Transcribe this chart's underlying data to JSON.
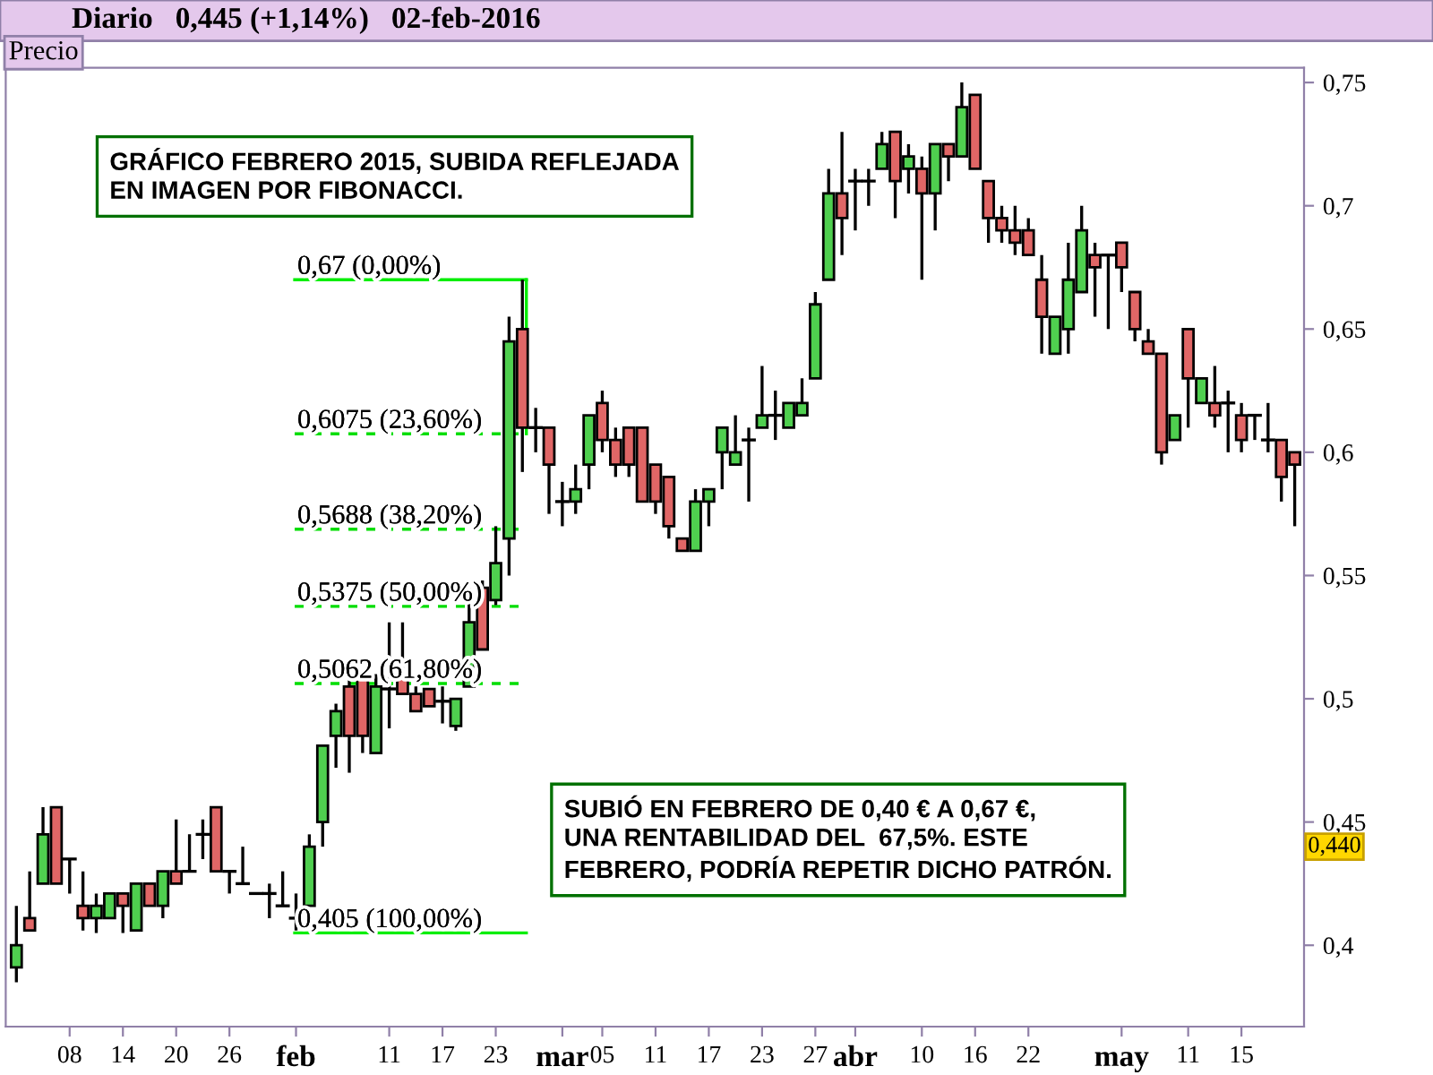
{
  "chart_data": {
    "type": "candlestick",
    "title": "Diario   0,445 (+1,14%)   02-feb-2016",
    "ylabel": "Precio",
    "categories": [
      null,
      null,
      null,
      null,
      "08",
      null,
      null,
      null,
      "14",
      null,
      null,
      null,
      "20",
      null,
      null,
      null,
      "26",
      null,
      null,
      null,
      null,
      "feb",
      null,
      null,
      null,
      null,
      null,
      null,
      "11",
      null,
      null,
      null,
      "17",
      null,
      null,
      null,
      "23",
      null,
      null,
      null,
      null,
      "mar",
      null,
      null,
      "05",
      null,
      null,
      null,
      "11",
      null,
      null,
      null,
      "17",
      null,
      null,
      null,
      "23",
      null,
      null,
      null,
      "27",
      null,
      null,
      "abr",
      null,
      null,
      null,
      null,
      "10",
      null,
      null,
      null,
      "16",
      null,
      null,
      null,
      "22",
      null,
      null,
      null,
      null,
      null,
      null,
      "may",
      null,
      null,
      null,
      null,
      "11",
      null,
      null,
      null,
      "15",
      null,
      null,
      null,
      null
    ],
    "ohlc": [
      [
        0.391,
        0.416,
        0.385,
        0.4
      ],
      [
        0.411,
        0.43,
        0.406,
        0.406
      ],
      [
        0.425,
        0.456,
        0.425,
        0.445
      ],
      [
        0.456,
        0.456,
        0.425,
        0.425
      ],
      [
        0.435,
        0.435,
        0.421,
        0.435
      ],
      [
        0.416,
        0.43,
        0.406,
        0.411
      ],
      [
        0.411,
        0.421,
        0.405,
        0.416
      ],
      [
        0.411,
        0.421,
        0.411,
        0.421
      ],
      [
        0.421,
        0.421,
        0.405,
        0.416
      ],
      [
        0.406,
        0.425,
        0.406,
        0.425
      ],
      [
        0.425,
        0.425,
        0.416,
        0.416
      ],
      [
        0.416,
        0.43,
        0.411,
        0.43
      ],
      [
        0.43,
        0.451,
        0.425,
        0.425
      ],
      [
        0.43,
        0.445,
        0.43,
        0.43
      ],
      [
        0.445,
        0.451,
        0.435,
        0.445
      ],
      [
        0.456,
        0.456,
        0.43,
        0.43
      ],
      [
        0.43,
        0.43,
        0.421,
        0.43
      ],
      [
        0.425,
        0.44,
        0.425,
        0.425
      ],
      [
        0.421,
        0.421,
        0.421,
        0.421
      ],
      [
        0.421,
        0.425,
        0.411,
        0.421
      ],
      [
        0.416,
        0.43,
        0.416,
        0.416
      ],
      [
        0.411,
        0.421,
        0.406,
        0.411
      ],
      [
        0.416,
        0.445,
        0.416,
        0.44
      ],
      [
        0.45,
        0.481,
        0.44,
        0.481
      ],
      [
        0.485,
        0.498,
        0.472,
        0.495
      ],
      [
        0.505,
        0.51,
        0.47,
        0.485
      ],
      [
        0.511,
        0.511,
        0.478,
        0.485
      ],
      [
        0.478,
        0.51,
        0.478,
        0.505
      ],
      [
        0.504,
        0.531,
        0.488,
        0.504
      ],
      [
        0.51,
        0.531,
        0.502,
        0.502
      ],
      [
        0.502,
        0.505,
        0.495,
        0.495
      ],
      [
        0.504,
        0.504,
        0.497,
        0.497
      ],
      [
        0.499,
        0.505,
        0.49,
        0.499
      ],
      [
        0.489,
        0.5,
        0.487,
        0.5
      ],
      [
        0.505,
        0.545,
        0.505,
        0.531
      ],
      [
        0.545,
        0.548,
        0.52,
        0.52
      ],
      [
        0.54,
        0.57,
        0.538,
        0.555
      ],
      [
        0.565,
        0.655,
        0.55,
        0.645
      ],
      [
        0.65,
        0.67,
        0.592,
        0.61
      ],
      [
        0.61,
        0.618,
        0.6,
        0.61
      ],
      [
        0.61,
        0.61,
        0.575,
        0.595
      ],
      [
        0.58,
        0.588,
        0.57,
        0.58
      ],
      [
        0.58,
        0.595,
        0.575,
        0.585
      ],
      [
        0.595,
        0.615,
        0.585,
        0.615
      ],
      [
        0.62,
        0.625,
        0.6,
        0.605
      ],
      [
        0.605,
        0.61,
        0.59,
        0.595
      ],
      [
        0.61,
        0.61,
        0.59,
        0.595
      ],
      [
        0.61,
        0.61,
        0.58,
        0.58
      ],
      [
        0.595,
        0.595,
        0.575,
        0.58
      ],
      [
        0.59,
        0.59,
        0.565,
        0.57
      ],
      [
        0.565,
        0.565,
        0.56,
        0.56
      ],
      [
        0.56,
        0.585,
        0.56,
        0.58
      ],
      [
        0.58,
        0.585,
        0.57,
        0.585
      ],
      [
        0.6,
        0.61,
        0.585,
        0.61
      ],
      [
        0.595,
        0.615,
        0.595,
        0.6
      ],
      [
        0.605,
        0.61,
        0.58,
        0.605
      ],
      [
        0.61,
        0.635,
        0.61,
        0.615
      ],
      [
        0.615,
        0.625,
        0.605,
        0.615
      ],
      [
        0.61,
        0.62,
        0.61,
        0.62
      ],
      [
        0.615,
        0.63,
        0.615,
        0.62
      ],
      [
        0.63,
        0.665,
        0.63,
        0.66
      ],
      [
        0.67,
        0.715,
        0.67,
        0.705
      ],
      [
        0.705,
        0.73,
        0.68,
        0.695
      ],
      [
        0.71,
        0.715,
        0.69,
        0.71
      ],
      [
        0.71,
        0.715,
        0.7,
        0.71
      ],
      [
        0.715,
        0.73,
        0.715,
        0.725
      ],
      [
        0.73,
        0.73,
        0.695,
        0.71
      ],
      [
        0.715,
        0.725,
        0.705,
        0.72
      ],
      [
        0.715,
        0.72,
        0.67,
        0.705
      ],
      [
        0.705,
        0.725,
        0.69,
        0.725
      ],
      [
        0.725,
        0.725,
        0.71,
        0.72
      ],
      [
        0.72,
        0.75,
        0.72,
        0.74
      ],
      [
        0.745,
        0.745,
        0.715,
        0.715
      ],
      [
        0.71,
        0.71,
        0.685,
        0.695
      ],
      [
        0.695,
        0.7,
        0.685,
        0.69
      ],
      [
        0.69,
        0.7,
        0.68,
        0.685
      ],
      [
        0.69,
        0.695,
        0.68,
        0.68
      ],
      [
        0.67,
        0.68,
        0.64,
        0.655
      ],
      [
        0.64,
        0.655,
        0.64,
        0.655
      ],
      [
        0.65,
        0.685,
        0.64,
        0.67
      ],
      [
        0.665,
        0.7,
        0.665,
        0.69
      ],
      [
        0.68,
        0.685,
        0.655,
        0.675
      ],
      [
        0.68,
        0.68,
        0.65,
        0.68
      ],
      [
        0.685,
        0.685,
        0.665,
        0.675
      ],
      [
        0.665,
        0.665,
        0.645,
        0.65
      ],
      [
        0.645,
        0.65,
        0.64,
        0.64
      ],
      [
        0.64,
        0.64,
        0.595,
        0.6
      ],
      [
        0.605,
        0.615,
        0.605,
        0.615
      ],
      [
        0.65,
        0.65,
        0.61,
        0.63
      ],
      [
        0.62,
        0.63,
        0.62,
        0.63
      ],
      [
        0.62,
        0.635,
        0.61,
        0.615
      ],
      [
        0.62,
        0.625,
        0.6,
        0.62
      ],
      [
        0.615,
        0.62,
        0.6,
        0.605
      ],
      [
        0.615,
        0.615,
        0.605,
        0.615
      ],
      [
        0.605,
        0.62,
        0.6,
        0.605
      ],
      [
        0.605,
        0.605,
        0.58,
        0.59
      ],
      [
        0.6,
        0.6,
        0.57,
        0.595
      ]
    ],
    "colors": [
      "#4fcf4f",
      "#e06666",
      "#4fcf4f",
      "#e06666",
      "#000000",
      "#e06666",
      "#4fcf4f",
      "#4fcf4f",
      "#e06666",
      "#4fcf4f",
      "#e06666",
      "#4fcf4f",
      "#e06666",
      "#000000",
      "#000000",
      "#e06666",
      "#000000",
      "#000000",
      "#000000",
      "#000000",
      "#000000",
      "#000000",
      "#4fcf4f",
      "#4fcf4f",
      "#4fcf4f",
      "#e06666",
      "#e06666",
      "#4fcf4f",
      "#000000",
      "#e06666",
      "#e06666",
      "#e06666",
      "#000000",
      "#4fcf4f",
      "#4fcf4f",
      "#e06666",
      "#4fcf4f",
      "#4fcf4f",
      "#e06666",
      "#000000",
      "#e06666",
      "#000000",
      "#4fcf4f",
      "#4fcf4f",
      "#e06666",
      "#e06666",
      "#e06666",
      "#e06666",
      "#e06666",
      "#e06666",
      "#e06666",
      "#4fcf4f",
      "#4fcf4f",
      "#4fcf4f",
      "#4fcf4f",
      "#000000",
      "#4fcf4f",
      "#000000",
      "#4fcf4f",
      "#4fcf4f",
      "#4fcf4f",
      "#4fcf4f",
      "#e06666",
      "#000000",
      "#000000",
      "#4fcf4f",
      "#e06666",
      "#4fcf4f",
      "#e06666",
      "#4fcf4f",
      "#e06666",
      "#4fcf4f",
      "#e06666",
      "#e06666",
      "#e06666",
      "#e06666",
      "#e06666",
      "#e06666",
      "#4fcf4f",
      "#4fcf4f",
      "#4fcf4f",
      "#e06666",
      "#000000",
      "#e06666",
      "#e06666",
      "#e06666",
      "#e06666",
      "#4fcf4f",
      "#e06666",
      "#4fcf4f",
      "#e06666",
      "#000000",
      "#e06666",
      "#000000",
      "#000000",
      "#e06666",
      "#e06666"
    ],
    "ylim": [
      0.367,
      0.756
    ],
    "yticks": [
      {
        "value": 0.4,
        "label": "0,4"
      },
      {
        "value": 0.45,
        "label": "0,45"
      },
      {
        "value": 0.5,
        "label": "0,5"
      },
      {
        "value": 0.55,
        "label": "0,55"
      },
      {
        "value": 0.6,
        "label": "0,6"
      },
      {
        "value": 0.65,
        "label": "0,65"
      },
      {
        "value": 0.7,
        "label": "0,7"
      },
      {
        "value": 0.75,
        "label": "0,75"
      }
    ],
    "grid": false,
    "ref_lines": [
      {
        "axis": "y",
        "value": 0.67,
        "label": "0,67 (0,00%)",
        "color": "#00ee00",
        "line_style": "solid"
      },
      {
        "axis": "y",
        "value": 0.6075,
        "label": "0,6075 (23,60%)",
        "color": "#00dd00",
        "line_style": "dashed"
      },
      {
        "axis": "y",
        "value": 0.5688,
        "label": "0,5688 (38,20%)",
        "color": "#00dd00",
        "line_style": "dashed"
      },
      {
        "axis": "y",
        "value": 0.5375,
        "label": "0,5375 (50,00%)",
        "color": "#00dd00",
        "line_style": "dashed"
      },
      {
        "axis": "y",
        "value": 0.5062,
        "label": "0,5062 (61,80%)",
        "color": "#00dd00",
        "line_style": "dashed"
      },
      {
        "axis": "y",
        "value": 0.405,
        "label": "0,405 (100,00%)",
        "color": "#00ee00",
        "line_style": "solid"
      }
    ],
    "annotations": [
      "GRÁFICO FEBRERO 2015, SUBIDA REFLEJADA\nEN IMAGEN POR FIBONACCI.",
      "SUBIÓ EN FEBRERO DE 0,40 € A 0,67 €,\nUNA RENTABILIDAD DEL  67,5%. ESTE\nFEBRERO, PODRÍA REPETIR DICHO PATRÓN.",
      {
        "text": "0,440",
        "y": 0.44
      }
    ]
  }
}
